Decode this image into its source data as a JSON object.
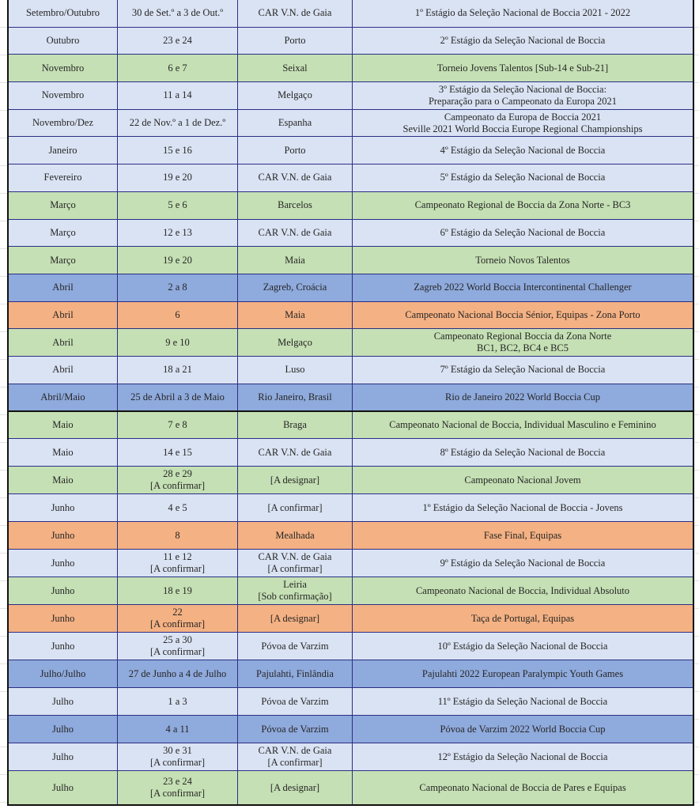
{
  "colors": {
    "lavender": "#dae3f3",
    "green": "#c5e0b4",
    "blue": "#8faadc",
    "orange": "#f4b183",
    "grid": "#2a2f86"
  },
  "rows": [
    {
      "color": "lavender",
      "month": "Setembro/Outubro",
      "dates": [
        "30 de Set.º a 3 de Out.º"
      ],
      "place": [
        "CAR V.N. de Gaia"
      ],
      "event": [
        "1º Estágio da Seleção Nacional de Boccia 2021 - 2022"
      ]
    },
    {
      "color": "lavender",
      "month": "Outubro",
      "dates": [
        "23 e 24"
      ],
      "place": [
        "Porto"
      ],
      "event": [
        "2º Estágio da Seleção Nacional de Boccia"
      ]
    },
    {
      "color": "green",
      "month": "Novembro",
      "dates": [
        "6 e 7"
      ],
      "place": [
        "Seixal"
      ],
      "event": [
        "Torneio Jovens Talentos [Sub-14 e Sub-21]"
      ]
    },
    {
      "color": "lavender",
      "month": "Novembro",
      "dates": [
        "11 a 14"
      ],
      "place": [
        "Melgaço"
      ],
      "event": [
        "3º Estágio da Seleção Nacional de Boccia:",
        "Preparação para o Campeonato da Europa 2021"
      ]
    },
    {
      "color": "lavender",
      "month": "Novembro/Dez",
      "dates": [
        "22 de Nov.º a 1 de Dez.º"
      ],
      "place": [
        "Espanha"
      ],
      "event": [
        "Campeonato da Europa de Boccia 2021",
        "Seville 2021 World Boccia Europe Regional Championships"
      ]
    },
    {
      "color": "lavender",
      "month": "Janeiro",
      "dates": [
        "15 e 16"
      ],
      "place": [
        "Porto"
      ],
      "event": [
        "4º Estágio da Seleção Nacional de Boccia"
      ]
    },
    {
      "color": "lavender",
      "month": "Fevereiro",
      "dates": [
        "19 e 20"
      ],
      "place": [
        "CAR V.N. de Gaia"
      ],
      "event": [
        "5º Estágio da Seleção Nacional de Boccia"
      ]
    },
    {
      "color": "green",
      "month": "Março",
      "dates": [
        "5 e 6"
      ],
      "place": [
        "Barcelos"
      ],
      "event": [
        "Campeonato Regional de Boccia da Zona Norte - BC3"
      ]
    },
    {
      "color": "lavender",
      "month": "Março",
      "dates": [
        "12 e 13"
      ],
      "place": [
        "CAR V.N. de Gaia"
      ],
      "event": [
        "6º Estágio da Seleção Nacional de Boccia"
      ]
    },
    {
      "color": "green",
      "month": "Março",
      "dates": [
        "19 e 20"
      ],
      "place": [
        "Maia"
      ],
      "event": [
        "Torneio Novos Talentos"
      ]
    },
    {
      "color": "blue",
      "month": "Abril",
      "dates": [
        "2 a 8"
      ],
      "place": [
        "Zagreb, Croácia"
      ],
      "event": [
        "Zagreb 2022 World Boccia Intercontinental Challenger"
      ]
    },
    {
      "color": "orange",
      "month": "Abril",
      "dates": [
        "6"
      ],
      "place": [
        "Maia"
      ],
      "event": [
        "Campeonato Nacional Boccia Sénior, Equipas - Zona Porto"
      ]
    },
    {
      "color": "green",
      "month": "Abril",
      "dates": [
        "9 e 10"
      ],
      "place": [
        "Melgaço"
      ],
      "event": [
        "Campeonato Regional Boccia da Zona Norte",
        "BC1, BC2, BC4 e BC5"
      ]
    },
    {
      "color": "lavender",
      "month": "Abril",
      "dates": [
        "18 a 21"
      ],
      "place": [
        "Luso"
      ],
      "event": [
        "7º Estágio da Seleção Nacional de Boccia"
      ]
    },
    {
      "color": "blue",
      "month": "Abril/Maio",
      "dates": [
        "25 de Abril a 3 de Maio"
      ],
      "place": [
        "Rio Janeiro, Brasil"
      ],
      "event": [
        "Rio de Janeiro 2022 World Boccia Cup"
      ]
    },
    {
      "color": "green",
      "month": "Maio",
      "dates": [
        "7 e 8"
      ],
      "place": [
        "Braga"
      ],
      "event": [
        "Campeonato Nacional de Boccia, Individual Masculino e Feminino"
      ]
    },
    {
      "color": "lavender",
      "month": "Maio",
      "dates": [
        "14 e 15"
      ],
      "place": [
        "CAR V.N. de Gaia"
      ],
      "event": [
        "8º Estágio da Seleção Nacional de Boccia"
      ]
    },
    {
      "color": "green",
      "month": "Maio",
      "dates": [
        "28 e 29",
        "[A confirmar]"
      ],
      "place": [
        "[A designar]"
      ],
      "event": [
        "Campeonato Nacional Jovem"
      ]
    },
    {
      "color": "lavender",
      "month": "Junho",
      "dates": [
        "4 e 5"
      ],
      "place": [
        "[A confirmar]"
      ],
      "event": [
        "1º Estágio da Seleção Nacional de Boccia - Jovens"
      ]
    },
    {
      "color": "orange",
      "month": "Junho",
      "dates": [
        "8"
      ],
      "place": [
        "Mealhada"
      ],
      "event": [
        "Fase Final, Equipas"
      ]
    },
    {
      "color": "lavender",
      "month": "Junho",
      "dates": [
        "11 e 12",
        "[A confirmar]"
      ],
      "place": [
        "CAR V.N. de Gaia",
        "[A confirmar]"
      ],
      "event": [
        "9º Estágio da Seleção Nacional de Boccia"
      ]
    },
    {
      "color": "green",
      "month": "Junho",
      "dates": [
        "18 e 19"
      ],
      "place": [
        "Leiria",
        "[Sob confirmação]"
      ],
      "event": [
        "Campeonato Nacional de Boccia, Individual Absoluto"
      ]
    },
    {
      "color": "orange",
      "month": "Junho",
      "dates": [
        "22",
        "[A confirmar]"
      ],
      "place": [
        "[A designar]"
      ],
      "event": [
        "Taça de Portugal, Equipas"
      ]
    },
    {
      "color": "lavender",
      "month": "Junho",
      "dates": [
        "25 a 30",
        "[A confirmar]"
      ],
      "place": [
        "Póvoa de Varzim"
      ],
      "event": [
        "10º Estágio da Seleção Nacional de Boccia"
      ]
    },
    {
      "color": "blue",
      "month": "Julho/Julho",
      "dates": [
        "27 de Junho a 4 de Julho"
      ],
      "place": [
        "Pajulahti, Finlândia"
      ],
      "event": [
        "Pajulahti 2022 European Paralympic Youth Games"
      ]
    },
    {
      "color": "lavender",
      "month": "Julho",
      "dates": [
        "1 a 3"
      ],
      "place": [
        "Póvoa de Varzim"
      ],
      "event": [
        "11º Estágio da Seleção Nacional de Boccia"
      ]
    },
    {
      "color": "blue",
      "month": "Julho",
      "dates": [
        "4 a 11"
      ],
      "place": [
        "Póvoa de Varzim"
      ],
      "event": [
        "Póvoa de Varzim 2022 World Boccia Cup"
      ]
    },
    {
      "color": "lavender",
      "month": "Julho",
      "dates": [
        "30 e 31",
        "[A confirmar]"
      ],
      "place": [
        "CAR V.N. de Gaia",
        "[A confirmar]"
      ],
      "event": [
        "12º Estágio da Seleção Nacional de Boccia"
      ]
    },
    {
      "color": "green",
      "month": "Julho",
      "dates": [
        "23 e 24",
        "[A confirmar]"
      ],
      "place": [
        "[A designar]"
      ],
      "event": [
        "Campeonato Nacional de Boccia de Pares e Equipas"
      ]
    }
  ]
}
